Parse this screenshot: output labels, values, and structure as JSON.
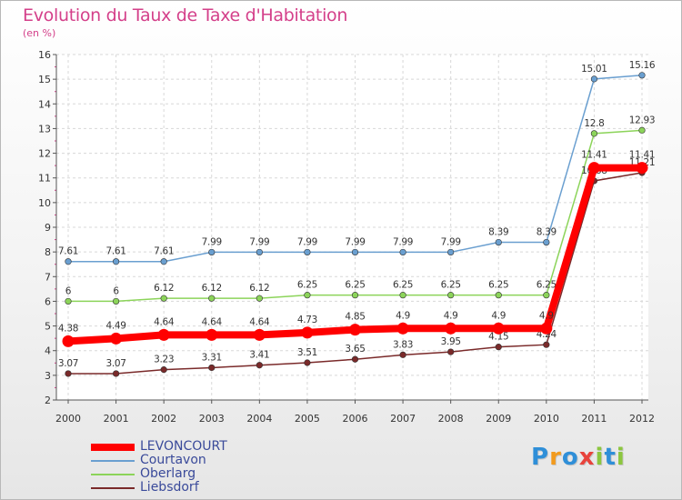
{
  "title": "Evolution du Taux de Taxe d'Habitation",
  "subtitle": "(en %)",
  "chart_data": {
    "type": "line",
    "title": "Evolution du Taux de Taxe d'Habitation",
    "ylabel": "(en %)",
    "xlabel": "",
    "ylim": [
      2,
      16
    ],
    "yticks": [
      "2",
      "3",
      "4",
      "5",
      "6",
      "7",
      "8",
      "9",
      "10",
      "11",
      "12",
      "13",
      "14",
      "15",
      "16"
    ],
    "grid": true,
    "legend_position": "bottom-left",
    "x": [
      "2000",
      "2001",
      "2002",
      "2003",
      "2004",
      "2005",
      "2006",
      "2007",
      "2008",
      "2009",
      "2010",
      "2011",
      "2012"
    ],
    "series": [
      {
        "name": "LEVONCOURT",
        "color": "#ff0000",
        "values": [
          4.38,
          4.49,
          4.64,
          4.64,
          4.64,
          4.73,
          4.85,
          4.9,
          4.9,
          4.9,
          4.9,
          11.41,
          11.41
        ],
        "labels": [
          "4.38",
          "4.49",
          "4.64",
          "4.64",
          "4.64",
          "4.73",
          "4.85",
          "4.9",
          "4.9",
          "4.9",
          "4.9",
          "11.41",
          "11.41"
        ]
      },
      {
        "name": "Courtavon",
        "color": "#6a9fd0",
        "values": [
          7.61,
          7.61,
          7.61,
          7.99,
          7.99,
          7.99,
          7.99,
          7.99,
          7.99,
          8.39,
          8.39,
          15.01,
          15.16
        ],
        "labels": [
          "7.61",
          "7.61",
          "7.61",
          "7.99",
          "7.99",
          "7.99",
          "7.99",
          "7.99",
          "7.99",
          "8.39",
          "8.39",
          "15.01",
          "15.16"
        ]
      },
      {
        "name": "Oberlarg",
        "color": "#8cd45a",
        "values": [
          6,
          6,
          6.12,
          6.12,
          6.12,
          6.25,
          6.25,
          6.25,
          6.25,
          6.25,
          6.25,
          12.8,
          12.93
        ],
        "labels": [
          "6",
          "6",
          "6.12",
          "6.12",
          "6.12",
          "6.25",
          "6.25",
          "6.25",
          "6.25",
          "6.25",
          "6.25",
          "12.8",
          "12.93"
        ]
      },
      {
        "name": "Liebsdorf",
        "color": "#7a2a2a",
        "values": [
          3.07,
          3.07,
          3.23,
          3.31,
          3.41,
          3.51,
          3.65,
          3.83,
          3.95,
          4.15,
          4.24,
          10.88,
          11.21
        ],
        "labels": [
          "3.07",
          "3.07",
          "3.23",
          "3.31",
          "3.41",
          "3.51",
          "3.65",
          "3.83",
          "3.95",
          "4.15",
          "4.24",
          "10.88",
          "11.21"
        ]
      }
    ]
  },
  "legend": [
    {
      "label": "LEVONCOURT",
      "color": "#ff0000"
    },
    {
      "label": "Courtavon",
      "color": "#6a9fd0"
    },
    {
      "label": "Oberlarg",
      "color": "#8cd45a"
    },
    {
      "label": "Liebsdorf",
      "color": "#7a2a2a"
    }
  ],
  "logo": {
    "letters": [
      "P",
      "r",
      "o",
      "x",
      "i",
      "t",
      "i"
    ],
    "colors": [
      "#2f8fd8",
      "#f29a1d",
      "#2f8fd8",
      "#e8433c",
      "#8cc63f",
      "#2f8fd8",
      "#8cc63f"
    ]
  }
}
